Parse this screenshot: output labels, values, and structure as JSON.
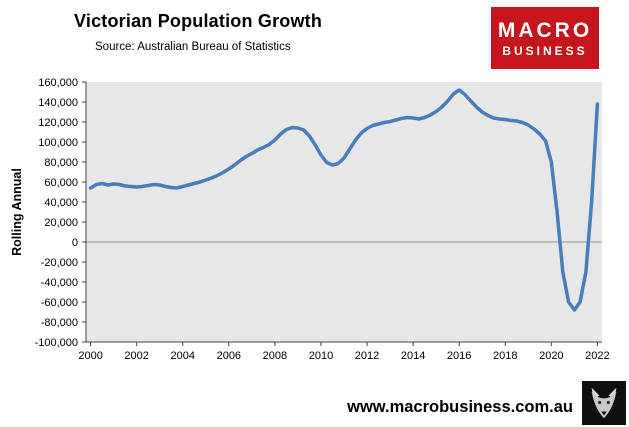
{
  "header": {
    "title": "Victorian Population Growth",
    "source": "Source: Australian Bureau of Statistics"
  },
  "logo": {
    "line1": "MACRO",
    "line2": "BUSINESS",
    "bg_color": "#c4161c"
  },
  "footer": {
    "url": "www.macrobusiness.com.au",
    "wolf_icon": "wolf-logo"
  },
  "chart_data": {
    "type": "line",
    "title": "Victorian Population Growth",
    "subtitle": "Source: Australian Bureau of Statistics",
    "xlabel": "",
    "ylabel": "Rolling Annual",
    "ylim": [
      -100000,
      160000
    ],
    "xlim": [
      1999.8,
      2022.2
    ],
    "yticks": [
      160000,
      140000,
      120000,
      100000,
      80000,
      60000,
      40000,
      20000,
      0,
      -20000,
      -40000,
      -60000,
      -80000,
      -100000
    ],
    "xticks": [
      2000,
      2002,
      2004,
      2006,
      2008,
      2010,
      2012,
      2014,
      2016,
      2018,
      2020,
      2022
    ],
    "grid": false,
    "legend": "none",
    "plot_bg": "#e7e7e7",
    "line_color": "#4a7ebb",
    "zero_line_color": "#8c8c8c",
    "axis_color": "#404040",
    "series": [
      {
        "name": "Victorian population growth (rolling annual)",
        "x": [
          2000,
          2000.25,
          2000.5,
          2000.75,
          2001,
          2001.25,
          2001.5,
          2001.75,
          2002,
          2002.25,
          2002.5,
          2002.75,
          2003,
          2003.25,
          2003.5,
          2003.75,
          2004,
          2004.25,
          2004.5,
          2004.75,
          2005,
          2005.25,
          2005.5,
          2005.75,
          2006,
          2006.25,
          2006.5,
          2006.75,
          2007,
          2007.25,
          2007.5,
          2007.75,
          2008,
          2008.25,
          2008.5,
          2008.75,
          2009,
          2009.25,
          2009.5,
          2009.75,
          2010,
          2010.25,
          2010.5,
          2010.75,
          2011,
          2011.25,
          2011.5,
          2011.75,
          2012,
          2012.25,
          2012.5,
          2012.75,
          2013,
          2013.25,
          2013.5,
          2013.75,
          2014,
          2014.25,
          2014.5,
          2014.75,
          2015,
          2015.25,
          2015.5,
          2015.75,
          2016,
          2016.25,
          2016.5,
          2016.75,
          2017,
          2017.25,
          2017.5,
          2017.75,
          2018,
          2018.25,
          2018.5,
          2018.75,
          2019,
          2019.25,
          2019.5,
          2019.75,
          2020,
          2020.25,
          2020.5,
          2020.75,
          2021,
          2021.25,
          2021.5,
          2021.75,
          2022
        ],
        "values": [
          54000,
          57500,
          58500,
          57000,
          58000,
          57500,
          56000,
          55500,
          55000,
          55500,
          56500,
          57500,
          57000,
          55500,
          54500,
          54000,
          55500,
          57000,
          58500,
          60000,
          62000,
          64000,
          66500,
          69500,
          73000,
          77000,
          81500,
          85500,
          88500,
          92000,
          94500,
          97500,
          102000,
          108000,
          112500,
          114500,
          114000,
          112000,
          106000,
          97000,
          87000,
          79500,
          77000,
          78500,
          84000,
          93000,
          102000,
          109000,
          113500,
          116500,
          118000,
          119500,
          120500,
          122000,
          123500,
          124500,
          124000,
          123000,
          124500,
          127000,
          130500,
          135000,
          141000,
          148000,
          152000,
          147500,
          141000,
          135000,
          130000,
          126500,
          124000,
          123000,
          122500,
          121500,
          121000,
          119500,
          117000,
          113000,
          108000,
          101000,
          80000,
          30000,
          -30000,
          -60000,
          -68000,
          -60000,
          -30000,
          40000,
          138000
        ]
      }
    ]
  }
}
